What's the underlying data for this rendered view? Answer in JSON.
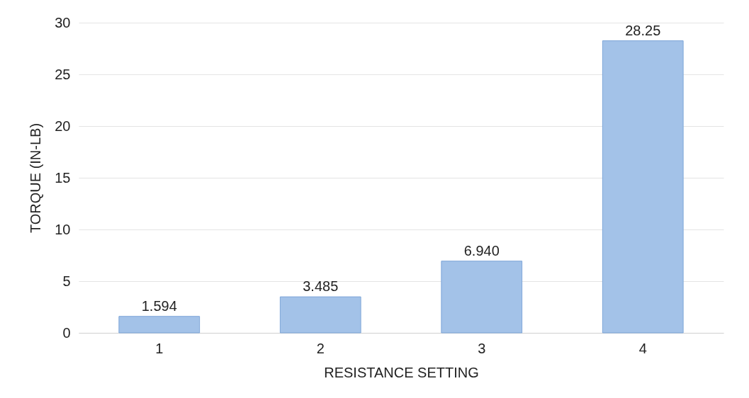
{
  "chart_data": {
    "type": "bar",
    "xlabel": "RESISTANCE SETTING",
    "ylabel": "TORQUE (IN-LB)",
    "categories": [
      "1",
      "2",
      "3",
      "4"
    ],
    "values": [
      1.594,
      3.485,
      6.94,
      28.25
    ],
    "value_labels": [
      "1.594",
      "3.485",
      "6.940",
      "28.25"
    ],
    "color": "#a3c2e8",
    "ylim": [
      0,
      30
    ],
    "yticks": [
      0,
      5,
      10,
      15,
      20,
      25,
      30
    ],
    "grid": "y"
  }
}
